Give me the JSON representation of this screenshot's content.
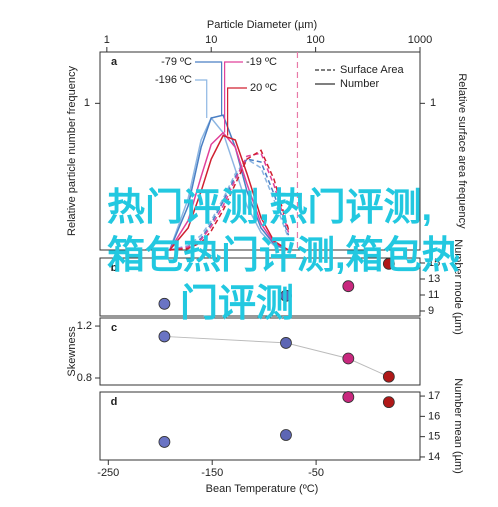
{
  "chart_data": [
    {
      "type": "line",
      "panel": "a",
      "xlabel": "Particle Diameter (µm)",
      "log_x": true,
      "x": [
        4,
        6,
        8,
        10,
        13,
        17,
        22,
        30,
        40,
        55
      ],
      "xlim": [
        0.86,
        1000
      ],
      "xticks": [
        1,
        10,
        100,
        1000
      ],
      "ylabel": "Relative particle number frequency",
      "ylim": [
        0,
        1.35
      ],
      "yticks": [
        1
      ],
      "y2label": "Relative surface area frequency",
      "y2lim": [
        0,
        1.35
      ],
      "y2ticks": [
        1
      ],
      "legend_position": "upper right",
      "legend": [
        {
          "label": "Surface Area",
          "dashed": true
        },
        {
          "label": "Number",
          "dashed": false
        }
      ],
      "vline": 67,
      "vline_color": "#e87aa8",
      "series": [
        {
          "name": "-196 ºC",
          "color": "#8db6e2",
          "values": [
            0,
            0.35,
            0.75,
            0.9,
            0.8,
            0.55,
            0.3,
            0.12,
            0.03,
            0
          ],
          "surface_values": [
            0,
            0.03,
            0.1,
            0.2,
            0.35,
            0.52,
            0.62,
            0.56,
            0.34,
            0.08
          ]
        },
        {
          "name": "-79 ºC",
          "color": "#4a7fc4",
          "values": [
            0,
            0.3,
            0.7,
            0.9,
            0.92,
            0.7,
            0.4,
            0.15,
            0.04,
            0
          ],
          "surface_values": [
            0,
            0.02,
            0.08,
            0.18,
            0.33,
            0.5,
            0.62,
            0.6,
            0.38,
            0.1
          ]
        },
        {
          "name": "-19 ºC",
          "color": "#e0409a",
          "values": [
            0,
            0.2,
            0.5,
            0.72,
            0.8,
            0.7,
            0.45,
            0.18,
            0.05,
            0
          ],
          "surface_values": [
            0,
            0.02,
            0.07,
            0.16,
            0.3,
            0.48,
            0.64,
            0.66,
            0.44,
            0.12
          ]
        },
        {
          "name": "20 ºC",
          "color": "#d02030",
          "values": [
            0,
            0.15,
            0.4,
            0.62,
            0.78,
            0.75,
            0.52,
            0.22,
            0.06,
            0
          ],
          "surface_values": [
            0,
            0.01,
            0.05,
            0.13,
            0.27,
            0.45,
            0.62,
            0.68,
            0.48,
            0.14
          ]
        }
      ]
    },
    {
      "type": "scatter",
      "panel": "b",
      "y_side": "right",
      "ylabel": "Number mode (µm)",
      "x": [
        -196,
        -79,
        -19,
        20
      ],
      "xlim": [
        -258,
        50
      ],
      "values": [
        9.9,
        10.9,
        12.1,
        14.9
      ],
      "colors": [
        "#6a74c4",
        "#5d66b4",
        "#c8287e",
        "#b01818"
      ],
      "ylim": [
        8.375,
        15.625
      ],
      "yticks": [
        9,
        11,
        13,
        15
      ]
    },
    {
      "type": "scatter",
      "panel": "c",
      "y_side": "left",
      "ylabel": "Skewness",
      "trend": true,
      "x": [
        -196,
        -79,
        -19,
        20
      ],
      "xlim": [
        -258,
        50
      ],
      "values": [
        1.12,
        1.07,
        0.95,
        0.81
      ],
      "colors": [
        "#6a74c4",
        "#5d66b4",
        "#c8287e",
        "#b01818"
      ],
      "ylim": [
        0.746,
        1.262
      ],
      "yticks": [
        0.8,
        1.2
      ]
    },
    {
      "type": "scatter",
      "panel": "d",
      "y_side": "right",
      "ylabel": "Number mean (µm)",
      "x": [
        -196,
        -79,
        -19,
        20
      ],
      "xlim": [
        -258,
        50
      ],
      "xticks": [
        -250,
        -150,
        -50
      ],
      "xlabel": "Bean Temperature (ºC)",
      "values": [
        14.74,
        15.08,
        16.95,
        16.7
      ],
      "colors": [
        "#6a74c4",
        "#5d66b4",
        "#c8287e",
        "#b01818"
      ],
      "ylim": [
        13.85,
        17.2
      ],
      "yticks": [
        14,
        15,
        16,
        17
      ]
    }
  ],
  "watermark": [
    "热门评测,热门评测,",
    "箱包热门评测,箱包热",
    "门评测"
  ]
}
